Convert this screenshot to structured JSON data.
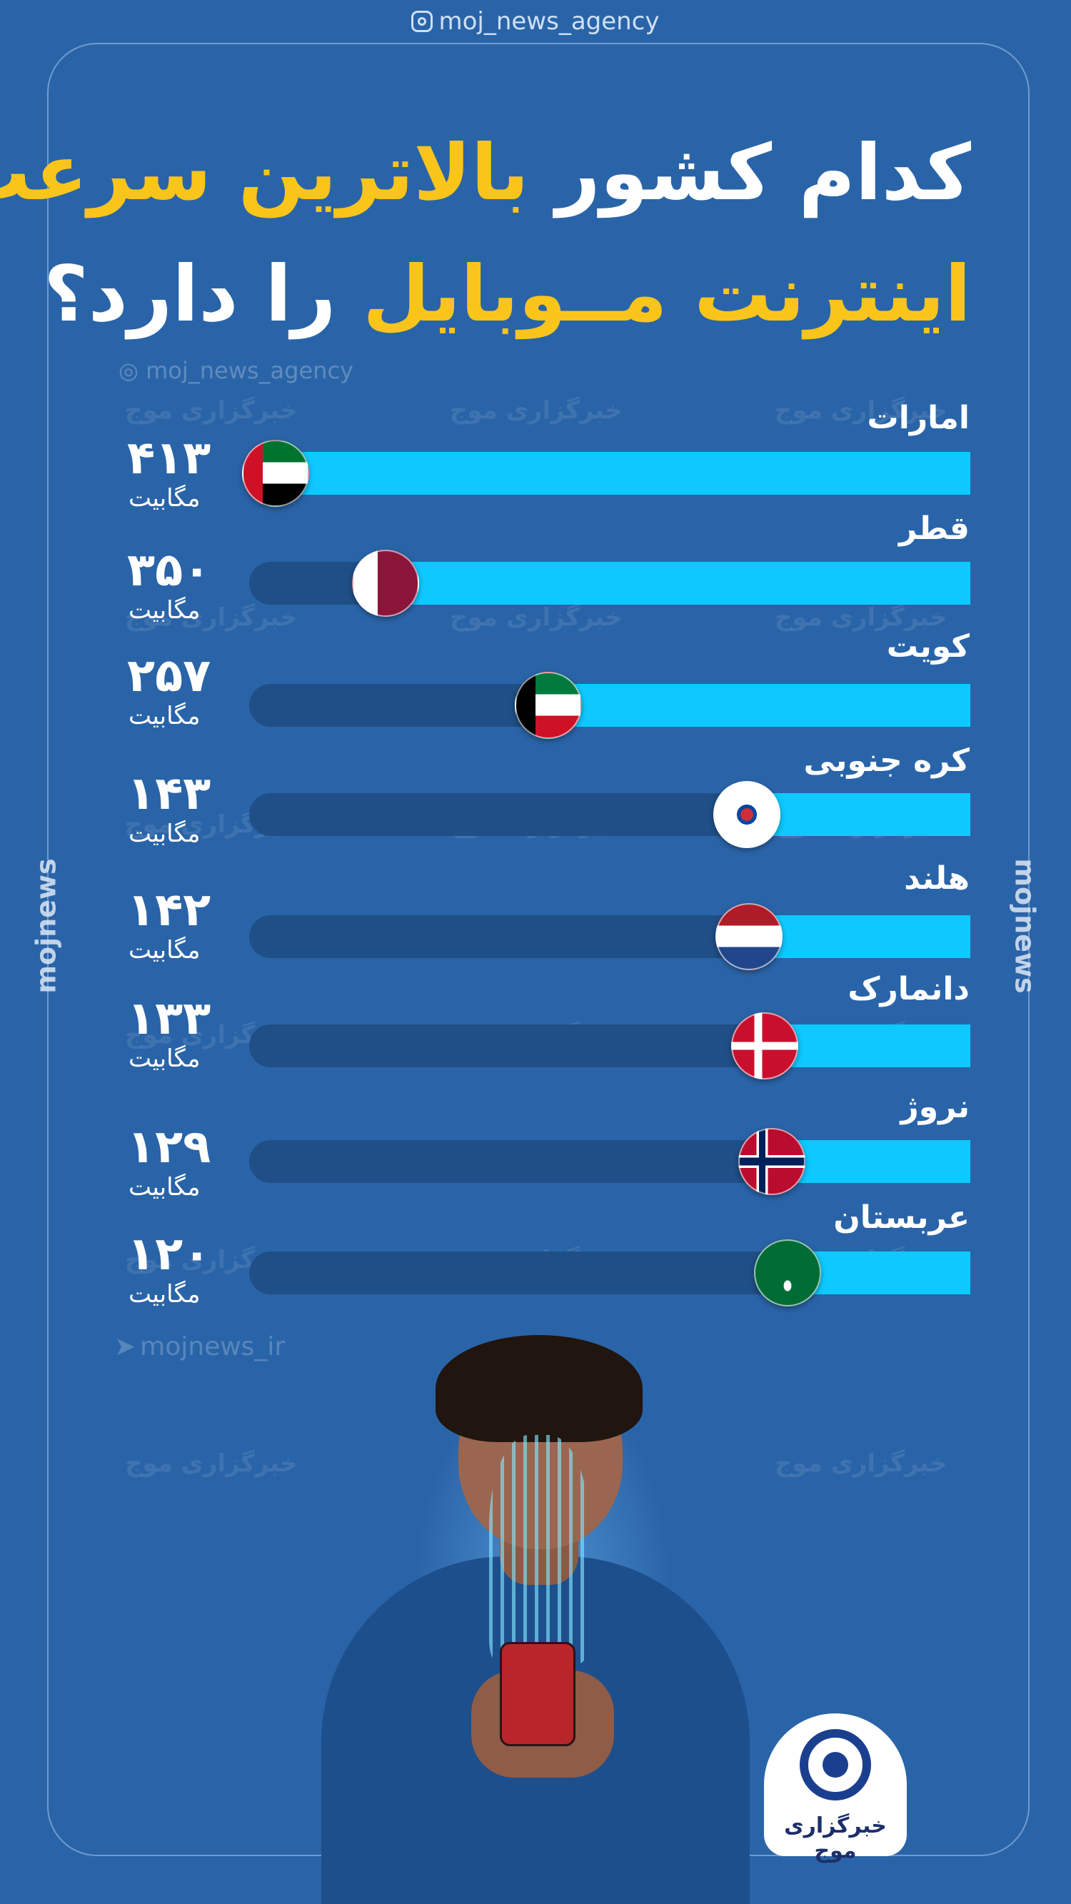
{
  "header": {
    "handle": "moj_news_agency"
  },
  "title": {
    "line1_white": "کدام کشور",
    "line1_yellow": "بالاترین سرعت",
    "line2_yellow": "اینترنت مــوبایل",
    "line2_white": "را دارد؟"
  },
  "watermark": {
    "handle": "moj_news_agency",
    "text": "خبرگزاری موج",
    "side": "mojnews",
    "telegram": "mojnews_ir"
  },
  "chart_data": {
    "type": "bar",
    "categories": [
      "امارات",
      "قطر",
      "کویت",
      "کره جنوبی",
      "هلند",
      "دانمارک",
      "نروژ",
      "عربستان"
    ],
    "values": [
      413,
      350,
      257,
      143,
      142,
      133,
      129,
      120
    ],
    "value_labels": [
      "۴۱۳",
      "۳۵۰",
      "۲۵۷",
      "۱۴۳",
      "۱۴۲",
      "۱۳۳",
      "۱۲۹",
      "۱۲۰"
    ],
    "unit": "مگابیت",
    "xlim": [
      0,
      413
    ],
    "colors": {
      "fill": "#0ec9ff",
      "track": "#1f4f86"
    }
  },
  "logo": {
    "text": "خبرگزاری موج"
  }
}
